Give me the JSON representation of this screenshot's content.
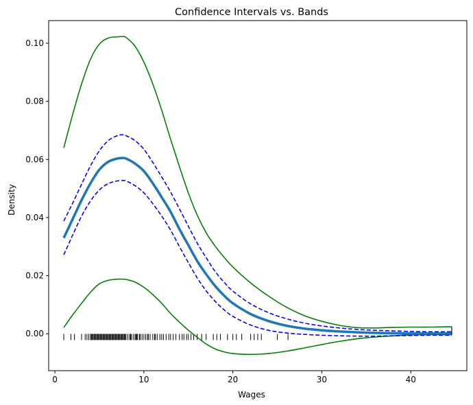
{
  "chart_data": {
    "type": "line",
    "title": "Confidence Intervals vs. Bands",
    "xlabel": "Wages",
    "ylabel": "Density",
    "xlim": [
      -0.7,
      46.3
    ],
    "ylim": [
      -0.0127,
      0.1078
    ],
    "xticks": [
      0,
      10,
      20,
      30,
      40
    ],
    "yticks": [
      0.0,
      0.02,
      0.04,
      0.06,
      0.08,
      0.1
    ],
    "ytick_labels": [
      "0.00",
      "0.02",
      "0.04",
      "0.06",
      "0.08",
      "0.10"
    ],
    "grid": false,
    "legend": null,
    "x": [
      1,
      2,
      3,
      4,
      5,
      6,
      7,
      7.6,
      8,
      9,
      10,
      11,
      12,
      13,
      14,
      15,
      16,
      17,
      18,
      19,
      20,
      22,
      24,
      26,
      28,
      30,
      32,
      34,
      36,
      38,
      40,
      42,
      44,
      44.6
    ],
    "series": [
      {
        "style": "solid-thick",
        "color": "#1f77b4",
        "values": [
          0.033,
          0.0395,
          0.046,
          0.0518,
          0.0565,
          0.0592,
          0.0603,
          0.0605,
          0.0603,
          0.0586,
          0.056,
          0.0518,
          0.047,
          0.042,
          0.036,
          0.0305,
          0.025,
          0.0205,
          0.0165,
          0.0132,
          0.0105,
          0.0068,
          0.0044,
          0.0028,
          0.0018,
          0.0012,
          0.0008,
          0.0005,
          0.0003,
          0.0002,
          0.0001,
          0.0001,
          0.0001,
          0.0001
        ]
      },
      {
        "style": "dashed",
        "color": "#0000ff",
        "values": [
          0.0388,
          0.045,
          0.0515,
          0.0578,
          0.063,
          0.0665,
          0.0682,
          0.0685,
          0.0682,
          0.0665,
          0.0635,
          0.059,
          0.054,
          0.0488,
          0.043,
          0.037,
          0.0312,
          0.0262,
          0.0215,
          0.0178,
          0.0147,
          0.0103,
          0.0073,
          0.0052,
          0.0037,
          0.0027,
          0.002,
          0.0015,
          0.0012,
          0.001,
          0.0008,
          0.0007,
          0.0007,
          0.0007
        ]
      },
      {
        "style": "dashed",
        "color": "#0000ff",
        "values": [
          0.0272,
          0.034,
          0.0405,
          0.0457,
          0.0495,
          0.0517,
          0.0526,
          0.0527,
          0.0526,
          0.051,
          0.0485,
          0.0448,
          0.0405,
          0.0357,
          0.03,
          0.0245,
          0.0192,
          0.0148,
          0.0112,
          0.0083,
          0.006,
          0.003,
          0.0012,
          0.0003,
          -0.0002,
          -0.0005,
          -0.0007,
          -0.0008,
          -0.0008,
          -0.0007,
          -0.0006,
          -0.0005,
          -0.0005,
          -0.0005
        ]
      },
      {
        "style": "solid",
        "color": "#008000",
        "values": [
          0.064,
          0.0755,
          0.086,
          0.0945,
          0.0997,
          0.1018,
          0.1022,
          0.1023,
          0.102,
          0.099,
          0.0935,
          0.086,
          0.077,
          0.067,
          0.0575,
          0.0485,
          0.0408,
          0.0348,
          0.0302,
          0.0264,
          0.023,
          0.0175,
          0.013,
          0.0092,
          0.0063,
          0.0043,
          0.0029,
          0.0021,
          0.002,
          0.0022,
          0.0023,
          0.0023,
          0.0024,
          0.0024
        ]
      },
      {
        "style": "solid",
        "color": "#008000",
        "values": [
          0.0022,
          0.0065,
          0.0105,
          0.0143,
          0.0172,
          0.0184,
          0.0188,
          0.0188,
          0.0187,
          0.0178,
          0.016,
          0.0135,
          0.0105,
          0.007,
          0.004,
          0.0012,
          -0.0012,
          -0.0035,
          -0.0052,
          -0.0062,
          -0.0068,
          -0.0071,
          -0.0068,
          -0.006,
          -0.0049,
          -0.0037,
          -0.0026,
          -0.0017,
          -0.0011,
          -0.0007,
          -0.0004,
          -0.0003,
          -0.0003,
          -0.0003
        ]
      }
    ],
    "rug": {
      "y": -0.0011,
      "x": [
        1.0,
        1.8,
        2.2,
        3.0,
        3.4,
        3.6,
        3.8,
        4.0,
        4.1,
        4.2,
        4.3,
        4.4,
        4.5,
        4.6,
        4.7,
        4.8,
        4.9,
        5.0,
        5.1,
        5.2,
        5.3,
        5.4,
        5.5,
        5.6,
        5.7,
        5.8,
        5.9,
        6.0,
        6.1,
        6.2,
        6.3,
        6.4,
        6.5,
        6.6,
        6.7,
        6.8,
        6.9,
        7.0,
        7.1,
        7.2,
        7.3,
        7.4,
        7.5,
        7.6,
        7.7,
        7.8,
        7.9,
        8.0,
        8.2,
        8.4,
        8.5,
        8.6,
        8.8,
        9.0,
        9.1,
        9.2,
        9.3,
        9.5,
        9.6,
        9.8,
        10.0,
        10.2,
        10.4,
        10.5,
        10.7,
        11.0,
        11.2,
        11.3,
        11.5,
        11.8,
        12.0,
        12.2,
        12.5,
        12.8,
        13.0,
        13.3,
        13.6,
        14.0,
        14.3,
        14.5,
        14.8,
        15.0,
        15.3,
        15.6,
        16.0,
        16.5,
        17.0,
        17.8,
        18.2,
        18.6,
        19.4,
        20.0,
        20.4,
        21.0,
        22.0,
        22.4,
        22.8,
        23.2,
        25.0,
        26.2
      ]
    }
  }
}
